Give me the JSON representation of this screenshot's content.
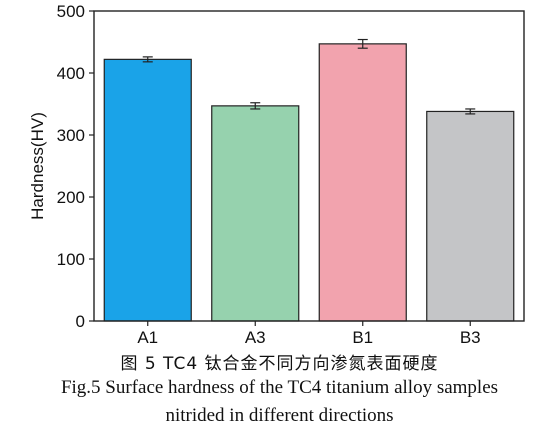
{
  "chart_data": {
    "type": "bar",
    "categories": [
      "A1",
      "A3",
      "B1",
      "B3"
    ],
    "values": [
      422,
      347,
      447,
      338
    ],
    "errors": [
      4,
      5,
      7,
      4
    ],
    "colors": [
      "#1aa3e8",
      "#96d2ae",
      "#f2a3ae",
      "#c4c5c7"
    ],
    "ylabel": "Hardness(HV)",
    "xlabel": "",
    "ylim": [
      0,
      500
    ],
    "yticks": [
      0,
      100,
      200,
      300,
      400,
      500
    ],
    "grid": false
  },
  "caption": {
    "cn": "图 5  TC4 钛合金不同方向渗氮表面硬度",
    "en_line1": "Fig.5  Surface hardness of the TC4 titanium alloy samples",
    "en_line2": "nitrided in different directions"
  }
}
